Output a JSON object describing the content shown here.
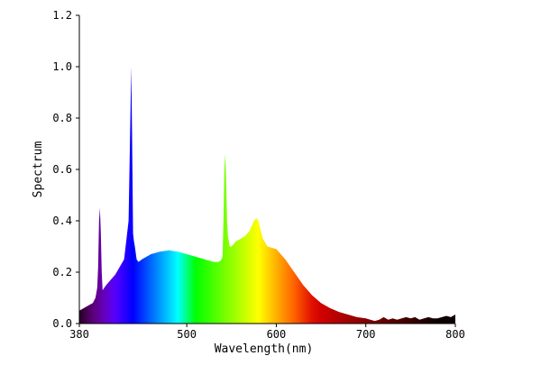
{
  "chart_data": {
    "type": "area",
    "title": "",
    "xlabel": "Wavelength(nm)",
    "ylabel": "Spectrum",
    "xlim": [
      380,
      800
    ],
    "ylim": [
      0,
      1.2
    ],
    "x_ticks": [
      380,
      500,
      600,
      700,
      800
    ],
    "y_ticks": [
      0.0,
      0.2,
      0.4,
      0.6,
      0.8,
      1.0,
      1.2
    ],
    "x_tick_labels": [
      "380",
      "500",
      "600",
      "700",
      "800"
    ],
    "y_tick_labels": [
      "0.0",
      "0.2",
      "0.4",
      "0.6",
      "0.8",
      "1.0",
      "1.2"
    ],
    "fill": "visible-spectrum color gradient",
    "grid": false,
    "legend": "none",
    "series": [
      {
        "x": [
          380,
          385,
          390,
          395,
          398,
          400,
          401,
          402,
          403,
          404,
          405,
          406,
          408,
          410,
          415,
          420,
          430,
          435,
          437,
          438,
          439,
          440,
          441,
          442,
          444,
          446,
          450,
          460,
          470,
          480,
          490,
          500,
          510,
          520,
          530,
          535,
          538,
          540,
          541,
          542,
          543,
          544,
          545,
          546,
          547,
          548,
          550,
          555,
          560,
          565,
          570,
          575,
          578,
          580,
          582,
          585,
          590,
          600,
          610,
          620,
          630,
          640,
          650,
          660,
          670,
          680,
          690,
          700,
          705,
          710,
          715,
          720,
          725,
          730,
          735,
          740,
          745,
          750,
          755,
          760,
          765,
          770,
          775,
          780,
          785,
          790,
          795,
          800
        ],
        "y": [
          0.05,
          0.06,
          0.07,
          0.08,
          0.1,
          0.14,
          0.22,
          0.4,
          0.45,
          0.35,
          0.2,
          0.13,
          0.14,
          0.15,
          0.17,
          0.19,
          0.25,
          0.4,
          0.8,
          1.0,
          0.7,
          0.35,
          0.32,
          0.3,
          0.25,
          0.24,
          0.25,
          0.27,
          0.28,
          0.285,
          0.28,
          0.27,
          0.26,
          0.25,
          0.24,
          0.24,
          0.245,
          0.26,
          0.4,
          0.6,
          0.66,
          0.55,
          0.4,
          0.34,
          0.32,
          0.3,
          0.3,
          0.32,
          0.33,
          0.34,
          0.36,
          0.4,
          0.41,
          0.4,
          0.37,
          0.33,
          0.3,
          0.29,
          0.25,
          0.2,
          0.15,
          0.11,
          0.08,
          0.06,
          0.045,
          0.035,
          0.025,
          0.02,
          0.015,
          0.01,
          0.015,
          0.025,
          0.015,
          0.02,
          0.015,
          0.02,
          0.025,
          0.02,
          0.025,
          0.015,
          0.02,
          0.025,
          0.02,
          0.02,
          0.025,
          0.03,
          0.025,
          0.035
        ]
      }
    ]
  }
}
